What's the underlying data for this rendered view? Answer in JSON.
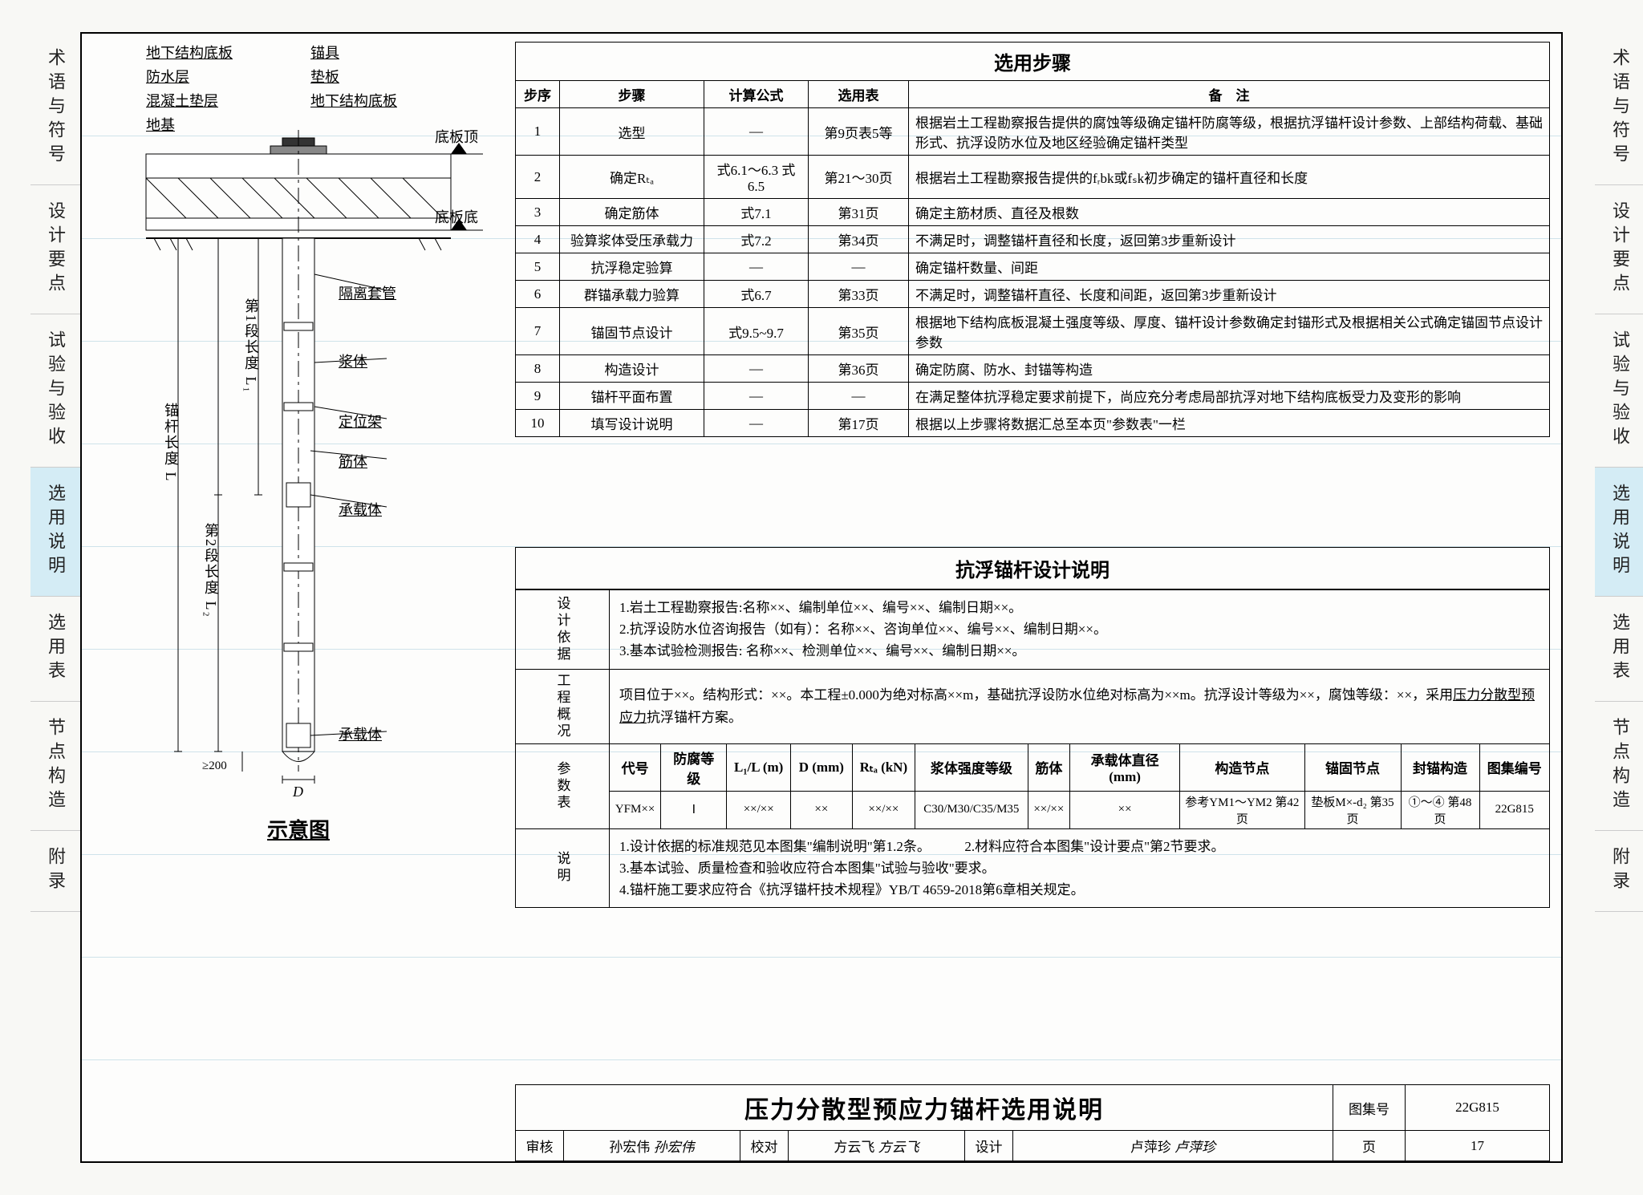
{
  "tabs": [
    "术语与符号",
    "设计要点",
    "试验与验收",
    "选用说明",
    "选用表",
    "节点构造",
    "附录"
  ],
  "active_tab_index": 3,
  "diagram": {
    "caption": "示意图",
    "labels_left": [
      "地下结构底板",
      "防水层",
      "混凝土垫层",
      "地基"
    ],
    "labels_right_top": [
      "锚具",
      "垫板",
      "地下结构底板"
    ],
    "label_top_right1": "底板顶",
    "label_top_right2": "底板底",
    "labels_right_body": [
      "隔离套管",
      "浆体",
      "定位架",
      "筋体",
      "承载体",
      "承载体"
    ],
    "vertical_labels": [
      "锚杆长度 L",
      "第2段长度 L₂",
      "第1段长度 L₁"
    ],
    "dim_bottom": "≥200",
    "dim_D": "D"
  },
  "steps": {
    "title": "选用步骤",
    "headers": [
      "步序",
      "步骤",
      "计算公式",
      "选用表",
      "备　注"
    ],
    "rows": [
      {
        "n": "1",
        "step": "选型",
        "formula": "—",
        "table": "第9页表5等",
        "remark": "根据岩土工程勘察报告提供的腐蚀等级确定锚杆防腐等级，根据抗浮锚杆设计参数、上部结构荷载、基础形式、抗浮设防水位及地区经验确定锚杆类型"
      },
      {
        "n": "2",
        "step": "确定Rₜₐ",
        "formula": "式6.1～6.3 式6.5",
        "table": "第21～30页",
        "remark": "根据岩土工程勘察报告提供的fᵣbk或fₛk初步确定的锚杆直径和长度"
      },
      {
        "n": "3",
        "step": "确定筋体",
        "formula": "式7.1",
        "table": "第31页",
        "remark": "确定主筋材质、直径及根数"
      },
      {
        "n": "4",
        "step": "验算浆体受压承载力",
        "formula": "式7.2",
        "table": "第34页",
        "remark": "不满足时，调整锚杆直径和长度，返回第3步重新设计"
      },
      {
        "n": "5",
        "step": "抗浮稳定验算",
        "formula": "—",
        "table": "—",
        "remark": "确定锚杆数量、间距"
      },
      {
        "n": "6",
        "step": "群锚承载力验算",
        "formula": "式6.7",
        "table": "第33页",
        "remark": "不满足时，调整锚杆直径、长度和间距，返回第3步重新设计"
      },
      {
        "n": "7",
        "step": "锚固节点设计",
        "formula": "式9.5~9.7",
        "table": "第35页",
        "remark": "根据地下结构底板混凝土强度等级、厚度、锚杆设计参数确定封锚形式及根据相关公式确定锚固节点设计参数"
      },
      {
        "n": "8",
        "step": "构造设计",
        "formula": "—",
        "table": "第36页",
        "remark": "确定防腐、防水、封锚等构造"
      },
      {
        "n": "9",
        "step": "锚杆平面布置",
        "formula": "—",
        "table": "—",
        "remark": "在满足整体抗浮稳定要求前提下，尚应充分考虑局部抗浮对地下结构底板受力及变形的影响"
      },
      {
        "n": "10",
        "step": "填写设计说明",
        "formula": "—",
        "table": "第17页",
        "remark": "根据以上步骤将数据汇总至本页\"参数表\"一栏"
      }
    ]
  },
  "design": {
    "title": "抗浮锚杆设计说明",
    "basis_label": "设计依据",
    "basis_text": "1.岩土工程勘察报告:名称××、编制单位××、编号××、编制日期××。\n2.抗浮设防水位咨询报告（如有）：名称××、咨询单位××、编号××、编制日期××。\n3.基本试验检测报告: 名称××、检测单位××、编号××、编制日期××。",
    "overview_label": "工程概况",
    "overview_text": "项目位于××。结构形式：××。本工程±0.000为绝对标高××m，基础抗浮设防水位绝对标高为××m。抗浮设计等级为××，腐蚀等级：××，采用压力分散型预应力抗浮锚杆方案。",
    "param_label": "参数表",
    "param_headers": [
      "代号",
      "防腐等级",
      "L₁/L (m)",
      "D (mm)",
      "Rₜₐ (kN)",
      "浆体强度等级",
      "筋体",
      "承载体直径(mm)",
      "构造节点",
      "锚固节点",
      "封锚构造",
      "图集编号"
    ],
    "param_row": [
      "YFM××",
      "Ⅰ",
      "××/××",
      "××",
      "××/××",
      "C30/M30/C35/M35",
      "××/××",
      "××",
      "参考YM1～YM2 第42页",
      "垫板M×-d₂ 第35页",
      "①～④ 第48页",
      "22G815"
    ],
    "note_label": "说明",
    "note_text": "1.设计依据的标准规范见本图集\"编制说明\"第1.2条。　　　2.材料应符合本图集\"设计要点\"第2节要求。\n3.基本试验、质量检查和验收应符合本图集\"试验与验收\"要求。\n4.锚杆施工要求应符合《抗浮锚杆技术规程》YB/T 4659-2018第6章相关规定。"
  },
  "titleblock": {
    "main": "压力分散型预应力锚杆选用说明",
    "set_label": "图集号",
    "set_no": "22G815",
    "reviewer_label": "审核",
    "reviewer": "孙宏伟",
    "reviewer_sig": "孙宏伟",
    "checker_label": "校对",
    "checker": "方云飞",
    "checker_sig": "方云飞",
    "designer_label": "设计",
    "designer": "卢萍珍",
    "designer_sig": "卢萍珍",
    "page_label": "页",
    "page_no": "17"
  }
}
